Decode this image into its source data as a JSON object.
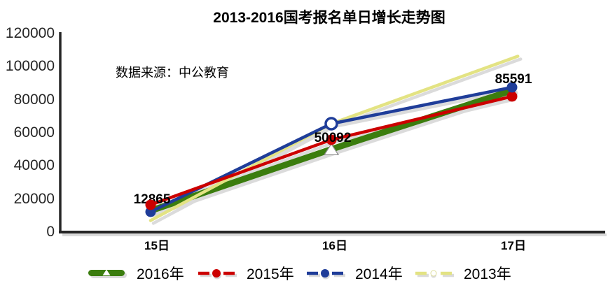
{
  "title": "2013-2016国考报名单日增长走势图",
  "source_note": "数据来源：中公教育",
  "chart_data": {
    "type": "line",
    "categories": [
      "15日",
      "16日",
      "17日"
    ],
    "series": [
      {
        "name": "2016年",
        "color": "#3B7D0E",
        "style": "thick",
        "marker": {
          "1": "triangle"
        },
        "values": [
          12865,
          50092,
          85591
        ],
        "labeled": true
      },
      {
        "name": "2015年",
        "color": "#CC0000",
        "style": "normal",
        "marker": {
          "0": "solid",
          "1": "solid",
          "2": "solid"
        },
        "values": [
          16500,
          55800,
          82000
        ]
      },
      {
        "name": "2014年",
        "color": "#1F3D99",
        "style": "normal",
        "marker": {
          "0": "solid",
          "1": "hollow",
          "2": "solid"
        },
        "values": [
          12250,
          65500,
          87500
        ]
      },
      {
        "name": "2013年",
        "color": "#E3E383",
        "style": "normal",
        "marker": {},
        "values": [
          7000,
          65500,
          105000
        ],
        "extend_end": true
      }
    ],
    "data_labels": {
      "series": "2016年",
      "values": [
        "12865",
        "50092",
        "85591"
      ]
    },
    "ylim": [
      0,
      120000
    ],
    "y_ticks": [
      0,
      20000,
      40000,
      60000,
      80000,
      100000,
      120000
    ],
    "xlabel": "",
    "ylabel": "",
    "grid": false,
    "legend_position": "bottom",
    "shadow": true
  },
  "colors": {
    "axis": "#262626",
    "shadow": "#DBDBDB",
    "label_text": "#000000"
  }
}
